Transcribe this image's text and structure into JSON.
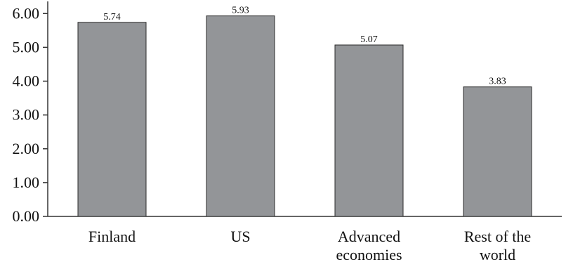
{
  "chart_data": {
    "type": "bar",
    "categories": [
      [
        "Finland"
      ],
      [
        "US"
      ],
      [
        "Advanced",
        "economies"
      ],
      [
        "Rest of the",
        "world"
      ]
    ],
    "values": [
      5.74,
      5.93,
      5.07,
      3.83
    ],
    "data_labels": [
      "5.74",
      "5.93",
      "5.07",
      "3.83"
    ],
    "title": "",
    "xlabel": "",
    "ylabel": "",
    "ylim": [
      0,
      6.4
    ],
    "yticks": [
      0,
      1,
      2,
      3,
      4,
      5,
      6
    ],
    "ytick_labels": [
      "0.00",
      "1.00",
      "2.00",
      "3.00",
      "4.00",
      "5.00",
      "6.00"
    ],
    "grid": false,
    "legend": "none",
    "bar_color": "#939598",
    "bar_edge_color": "#2b2b2b",
    "axis_color": "#333333"
  }
}
